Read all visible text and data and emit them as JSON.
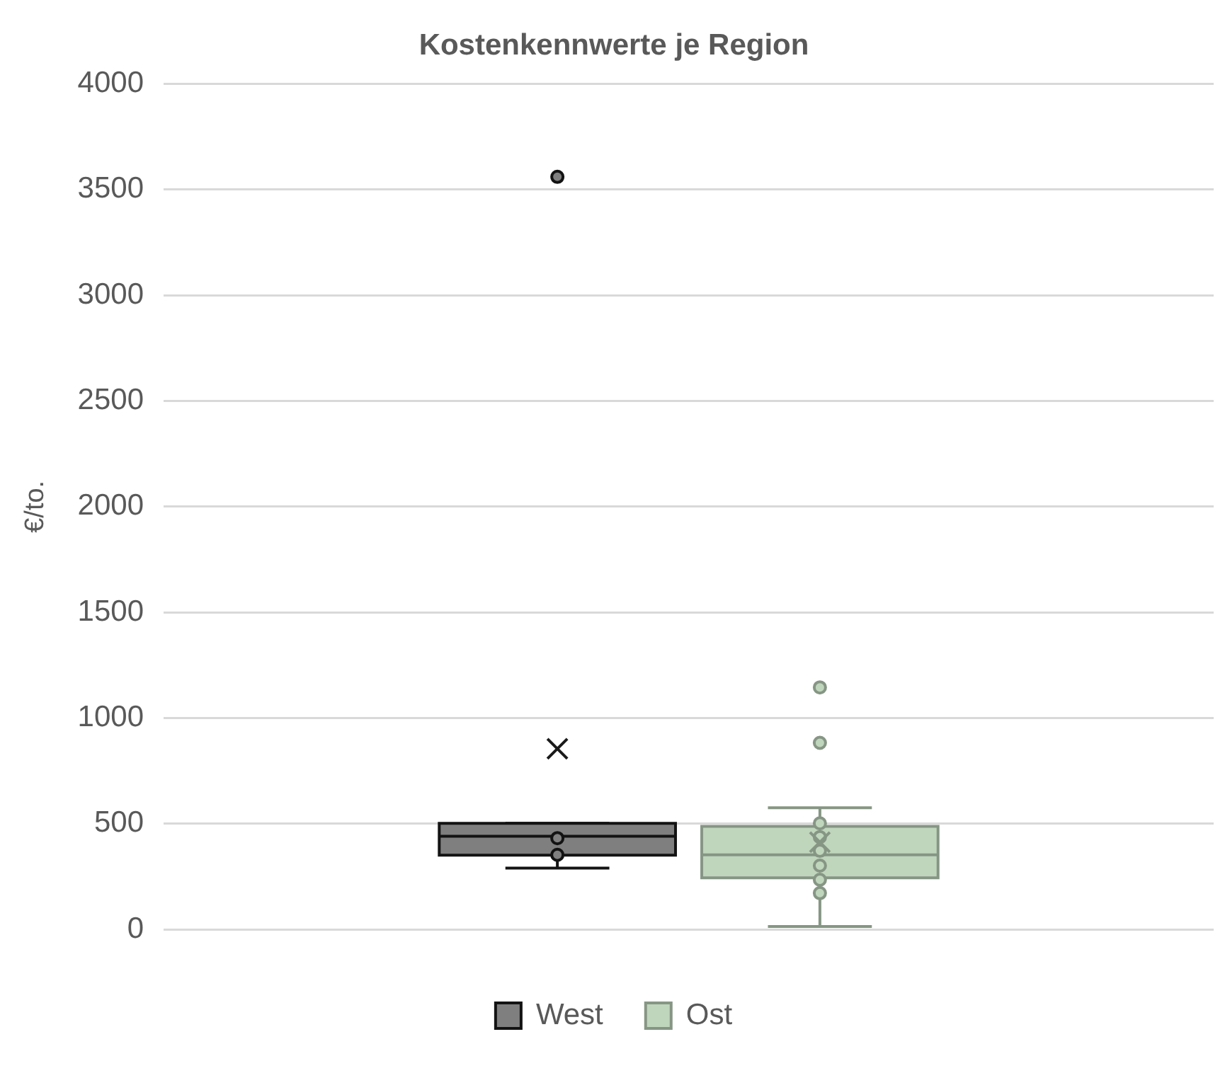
{
  "chart_data": {
    "type": "box",
    "title": "Kostenkennwerte je Region",
    "ylabel": "€/to.",
    "categories": [
      null
    ],
    "ylim": [
      0,
      4000
    ],
    "yticks": [
      0,
      500,
      1000,
      1500,
      2000,
      2500,
      3000,
      3500,
      4000
    ],
    "grid": "y",
    "legend": "bottom",
    "series": [
      {
        "name": "West",
        "color": "#7f7f7f",
        "boxes": [
          {
            "low": 290,
            "q1": 351,
            "median": 441,
            "q3": 502,
            "high": 502,
            "mean": 855,
            "outliers": [
              3560,
              432,
              353
            ]
          }
        ]
      },
      {
        "name": "Ost",
        "color": "#c0d6bc",
        "boxes": [
          {
            "low": 14,
            "q1": 244,
            "median": 353,
            "q3": 488,
            "high": 576,
            "mean": 413,
            "outliers": [
              1145,
              883,
              502,
              437,
              372,
              302,
              235,
              172
            ]
          }
        ]
      }
    ]
  }
}
